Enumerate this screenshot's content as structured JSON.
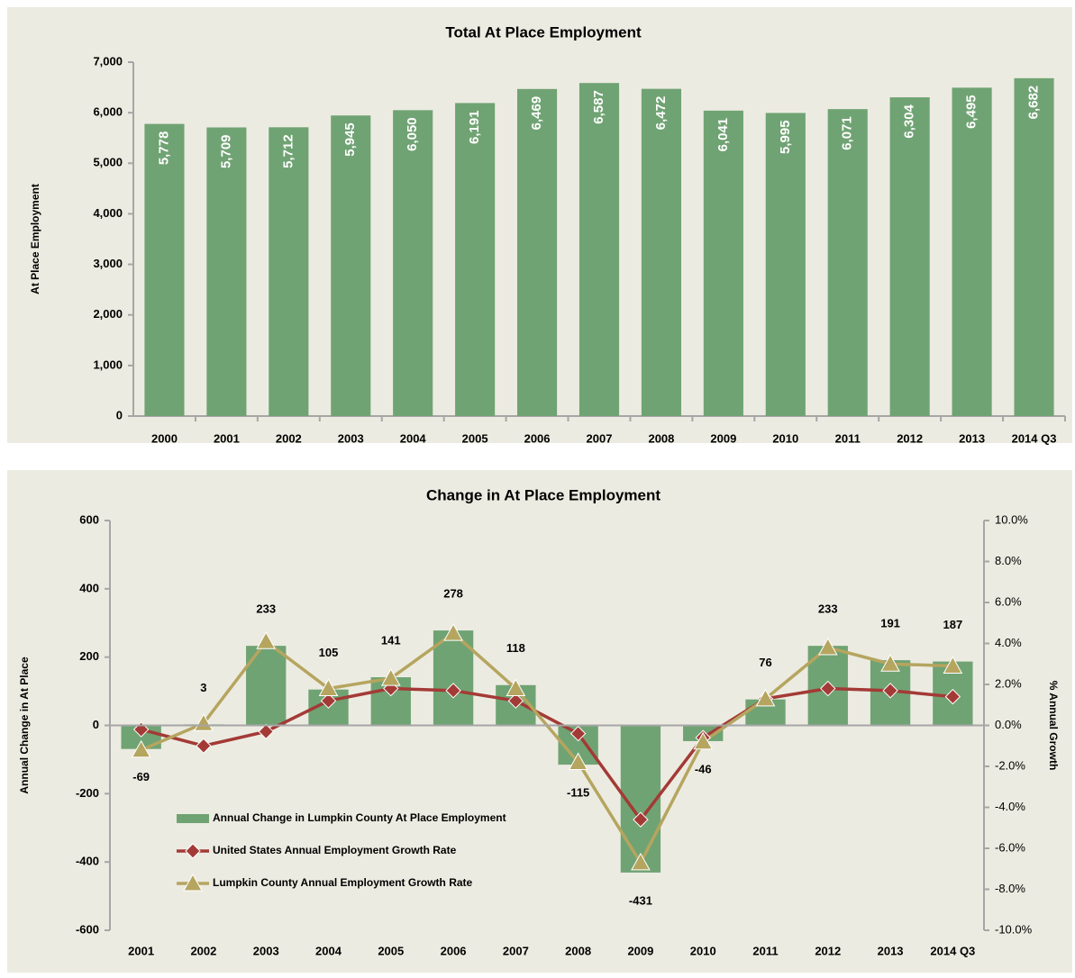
{
  "chart_data": [
    {
      "type": "bar",
      "title": "Total At Place Employment",
      "y_label": "At Place Employment",
      "categories": [
        "2000",
        "2001",
        "2002",
        "2003",
        "2004",
        "2005",
        "2006",
        "2007",
        "2008",
        "2009",
        "2010",
        "2011",
        "2012",
        "2013",
        "2014 Q3"
      ],
      "values": [
        5778,
        5709,
        5712,
        5945,
        6050,
        6191,
        6469,
        6587,
        6472,
        6041,
        5995,
        6071,
        6304,
        6495,
        6682
      ],
      "value_labels": [
        "5,778",
        "5,709",
        "5,712",
        "5,945",
        "6,050",
        "6,191",
        "6,469",
        "6,587",
        "6,472",
        "6,041",
        "5,995",
        "6,071",
        "6,304",
        "6,495",
        "6,682"
      ],
      "color": "#70a373",
      "ylim": [
        0,
        7000
      ],
      "yticks": [
        0,
        {
          "value": 1000,
          "label": "1,000"
        },
        {
          "value": 2000,
          "label": "2,000"
        },
        {
          "value": 3000,
          "label": "3,000"
        },
        {
          "value": 4000,
          "label": "4,000"
        },
        {
          "value": 5000,
          "label": "5,000"
        },
        {
          "value": 6000,
          "label": "6,000"
        },
        {
          "value": 7000,
          "label": "7,000"
        }
      ]
    },
    {
      "type": "combo",
      "title": "Change in At Place Employment",
      "y_label": "Annual Change in At Place",
      "y2_label": "% Annual Growth",
      "categories": [
        "2001",
        "2002",
        "2003",
        "2004",
        "2005",
        "2006",
        "2007",
        "2008",
        "2009",
        "2010",
        "2011",
        "2012",
        "2013",
        "2014 Q3"
      ],
      "series": [
        {
          "name": "Annual Change in Lumpkin County At Place Employment",
          "type": "bar",
          "color": "#70a373",
          "values": [
            -69,
            3,
            233,
            105,
            141,
            278,
            118,
            -115,
            -431,
            -46,
            76,
            233,
            191,
            187
          ]
        },
        {
          "name": "United States Annual Employment Growth Rate",
          "type": "line",
          "axis": "y2",
          "color": "#a33a36",
          "marker": "diamond",
          "values": [
            -0.2,
            -1.0,
            -0.3,
            1.2,
            1.8,
            1.7,
            1.2,
            -0.4,
            -4.6,
            -0.6,
            1.3,
            1.8,
            1.7,
            1.4
          ]
        },
        {
          "name": "Lumpkin County Annual Employment Growth Rate",
          "type": "line",
          "axis": "y2",
          "color": "#b5a55f",
          "marker": "triangle",
          "values": [
            -1.2,
            0.1,
            4.1,
            1.8,
            2.3,
            4.5,
            1.8,
            -1.8,
            -6.7,
            -0.8,
            1.3,
            3.8,
            3.0,
            2.9
          ]
        }
      ],
      "ylim": [
        -600,
        600
      ],
      "yticks": [
        -600,
        -400,
        -200,
        0,
        200,
        400,
        600
      ],
      "y2lim": [
        -10,
        10
      ],
      "y2ticks": [
        {
          "value": -10,
          "label": "-10.0%"
        },
        {
          "value": -8,
          "label": "-8.0%"
        },
        {
          "value": -6,
          "label": "-6.0%"
        },
        {
          "value": -4,
          "label": "-4.0%"
        },
        {
          "value": -2,
          "label": "-2.0%"
        },
        {
          "value": 0,
          "label": "0.0%"
        },
        {
          "value": 2,
          "label": "2.0%"
        },
        {
          "value": 4,
          "label": "4.0%"
        },
        {
          "value": 6,
          "label": "6.0%"
        },
        {
          "value": 8,
          "label": "8.0%"
        },
        {
          "value": 10,
          "label": "10.0%"
        }
      ]
    }
  ]
}
